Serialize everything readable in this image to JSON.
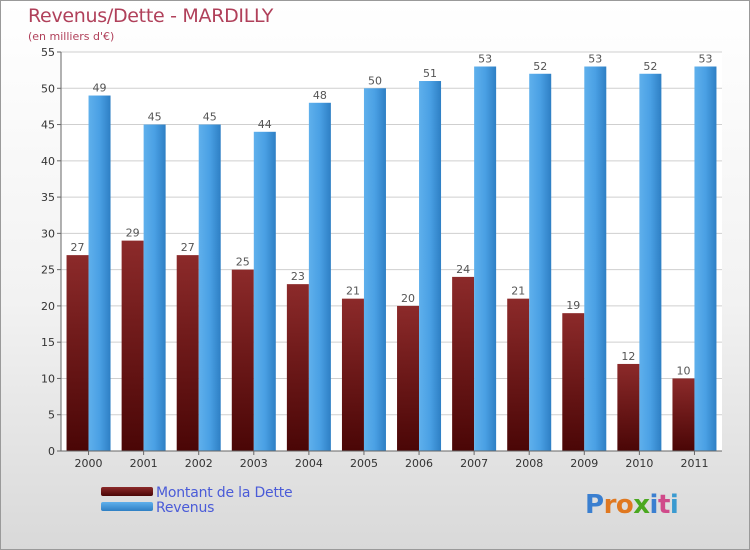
{
  "page": {
    "title": "Revenus/Dette - MARDILLY",
    "subtitle": "(en milliers d'€)"
  },
  "chart_data": {
    "type": "bar",
    "title": "Revenus/Dette - MARDILLY",
    "subtitle": "(en milliers d'€)",
    "categories": [
      "2000",
      "2001",
      "2002",
      "2003",
      "2004",
      "2005",
      "2006",
      "2007",
      "2008",
      "2009",
      "2010",
      "2011"
    ],
    "series": [
      {
        "name": "Montant de la Dette",
        "values": [
          27,
          29,
          27,
          25,
          23,
          21,
          20,
          24,
          21,
          19,
          12,
          10
        ],
        "color": "#7a1a1a"
      },
      {
        "name": "Revenus",
        "values": [
          49,
          45,
          45,
          44,
          48,
          50,
          51,
          53,
          52,
          53,
          52,
          53
        ],
        "color": "#4a9ee0"
      }
    ],
    "ylim": [
      0,
      55
    ],
    "yticks": [
      0,
      5,
      10,
      15,
      20,
      25,
      30,
      35,
      40,
      45,
      50,
      55
    ],
    "grid": true,
    "legend_position": "bottom-left"
  },
  "legend": {
    "items": [
      {
        "label": "Montant de la Dette",
        "color": "#7a1a1a"
      },
      {
        "label": "Revenus",
        "color": "#4a9ee0"
      }
    ]
  },
  "logo": {
    "letters": [
      "P",
      "r",
      "o",
      "x",
      "i",
      "t",
      "i"
    ],
    "colors": [
      "#3a7fd0",
      "#e07820",
      "#e07820",
      "#4aa820",
      "#3a7fd0",
      "#d04a8a",
      "#3a9ad0"
    ]
  }
}
